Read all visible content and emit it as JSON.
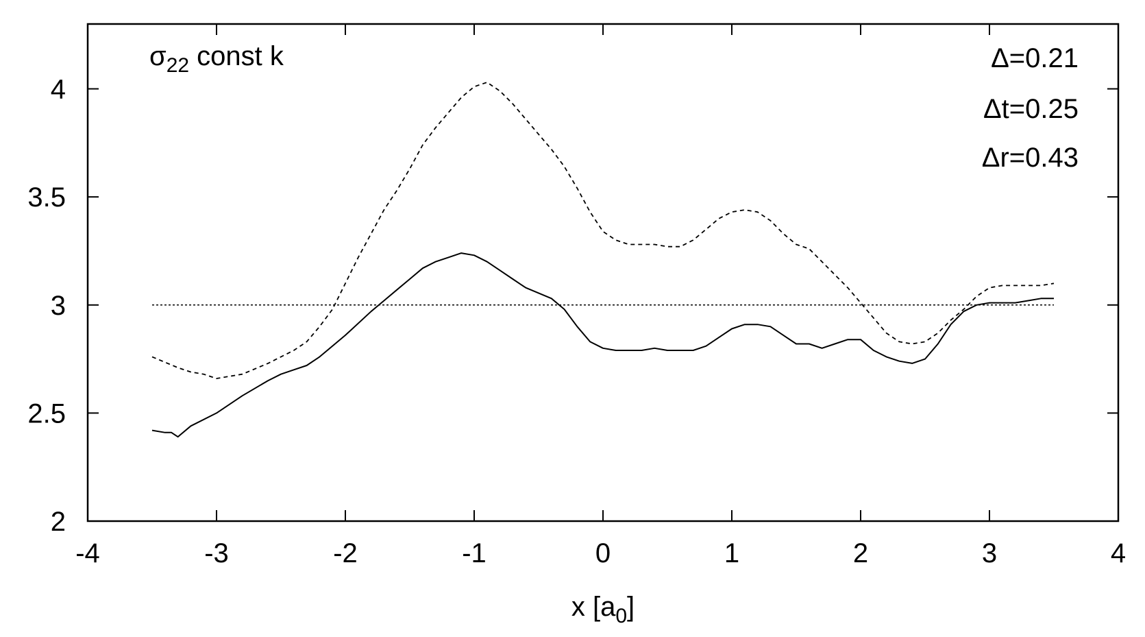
{
  "chart_data": {
    "type": "line",
    "title": "",
    "xlabel": "x [a",
    "xlabel_sub": "0",
    "xlabel_end": "]",
    "ylabel": "",
    "xlim": [
      -4,
      4
    ],
    "ylim": [
      2,
      4.3
    ],
    "xticks": [
      -4,
      -3,
      -2,
      -1,
      0,
      1,
      2,
      3,
      4
    ],
    "xtick_labels": [
      "-4",
      "-3",
      "-2",
      "-1",
      "0",
      "1",
      "2",
      "3",
      "4"
    ],
    "yticks": [
      2,
      2.5,
      3,
      3.5,
      4
    ],
    "ytick_labels": [
      "2",
      "2.5",
      "3",
      "3.5",
      "4"
    ],
    "grid": false,
    "legend": "none",
    "annotations": {
      "top_left": {
        "sigma": "σ",
        "sub": "22",
        "rest": " const k"
      },
      "top_right": [
        "Δ=0.21",
        "Δt=0.25",
        "Δr=0.43"
      ]
    },
    "series": [
      {
        "style": "solid",
        "x": [
          -3.5,
          -3.4,
          -3.35,
          -3.3,
          -3.2,
          -3.0,
          -2.8,
          -2.6,
          -2.5,
          -2.4,
          -2.3,
          -2.2,
          -2.0,
          -1.8,
          -1.7,
          -1.6,
          -1.5,
          -1.4,
          -1.3,
          -1.2,
          -1.1,
          -1.0,
          -0.9,
          -0.8,
          -0.7,
          -0.6,
          -0.4,
          -0.3,
          -0.2,
          -0.1,
          0.0,
          0.1,
          0.2,
          0.3,
          0.4,
          0.5,
          0.6,
          0.7,
          0.8,
          0.9,
          1.0,
          1.1,
          1.2,
          1.3,
          1.4,
          1.5,
          1.6,
          1.7,
          1.8,
          1.9,
          2.0,
          2.1,
          2.2,
          2.3,
          2.4,
          2.5,
          2.6,
          2.7,
          2.8,
          2.9,
          3.0,
          3.1,
          3.2,
          3.3,
          3.4,
          3.5
        ],
        "y": [
          2.42,
          2.41,
          2.41,
          2.39,
          2.44,
          2.5,
          2.58,
          2.65,
          2.68,
          2.7,
          2.72,
          2.76,
          2.86,
          2.97,
          3.02,
          3.07,
          3.12,
          3.17,
          3.2,
          3.22,
          3.24,
          3.23,
          3.2,
          3.16,
          3.12,
          3.08,
          3.03,
          2.98,
          2.9,
          2.83,
          2.8,
          2.79,
          2.79,
          2.79,
          2.8,
          2.79,
          2.79,
          2.79,
          2.81,
          2.85,
          2.89,
          2.91,
          2.91,
          2.9,
          2.86,
          2.82,
          2.82,
          2.8,
          2.82,
          2.84,
          2.84,
          2.79,
          2.76,
          2.74,
          2.73,
          2.75,
          2.82,
          2.91,
          2.97,
          3.0,
          3.01,
          3.01,
          3.01,
          3.02,
          3.03,
          3.03
        ]
      },
      {
        "style": "dashed",
        "x": [
          -3.5,
          -3.3,
          -3.2,
          -3.1,
          -3.0,
          -2.8,
          -2.6,
          -2.5,
          -2.4,
          -2.3,
          -2.2,
          -2.1,
          -2.0,
          -1.9,
          -1.8,
          -1.7,
          -1.6,
          -1.5,
          -1.4,
          -1.3,
          -1.2,
          -1.1,
          -1.0,
          -0.9,
          -0.8,
          -0.7,
          -0.6,
          -0.5,
          -0.4,
          -0.3,
          -0.2,
          -0.1,
          0.0,
          0.1,
          0.2,
          0.3,
          0.4,
          0.5,
          0.6,
          0.7,
          0.8,
          0.9,
          1.0,
          1.1,
          1.2,
          1.3,
          1.4,
          1.5,
          1.6,
          1.7,
          1.8,
          1.9,
          2.0,
          2.1,
          2.2,
          2.3,
          2.4,
          2.5,
          2.6,
          2.7,
          2.8,
          2.9,
          3.0,
          3.1,
          3.2,
          3.3,
          3.4,
          3.5
        ],
        "y": [
          2.76,
          2.71,
          2.69,
          2.68,
          2.66,
          2.68,
          2.73,
          2.76,
          2.79,
          2.83,
          2.9,
          2.98,
          3.1,
          3.22,
          3.33,
          3.44,
          3.53,
          3.63,
          3.74,
          3.82,
          3.89,
          3.96,
          4.01,
          4.03,
          3.99,
          3.93,
          3.86,
          3.79,
          3.72,
          3.64,
          3.54,
          3.43,
          3.34,
          3.3,
          3.28,
          3.28,
          3.28,
          3.27,
          3.27,
          3.3,
          3.35,
          3.4,
          3.43,
          3.44,
          3.43,
          3.39,
          3.33,
          3.28,
          3.26,
          3.2,
          3.14,
          3.08,
          3.01,
          2.94,
          2.87,
          2.83,
          2.82,
          2.83,
          2.87,
          2.93,
          2.98,
          3.04,
          3.08,
          3.09,
          3.09,
          3.09,
          3.09,
          3.1
        ]
      },
      {
        "style": "dotted",
        "x": [
          -3.5,
          3.5
        ],
        "y": [
          3.0,
          3.0
        ]
      }
    ]
  }
}
